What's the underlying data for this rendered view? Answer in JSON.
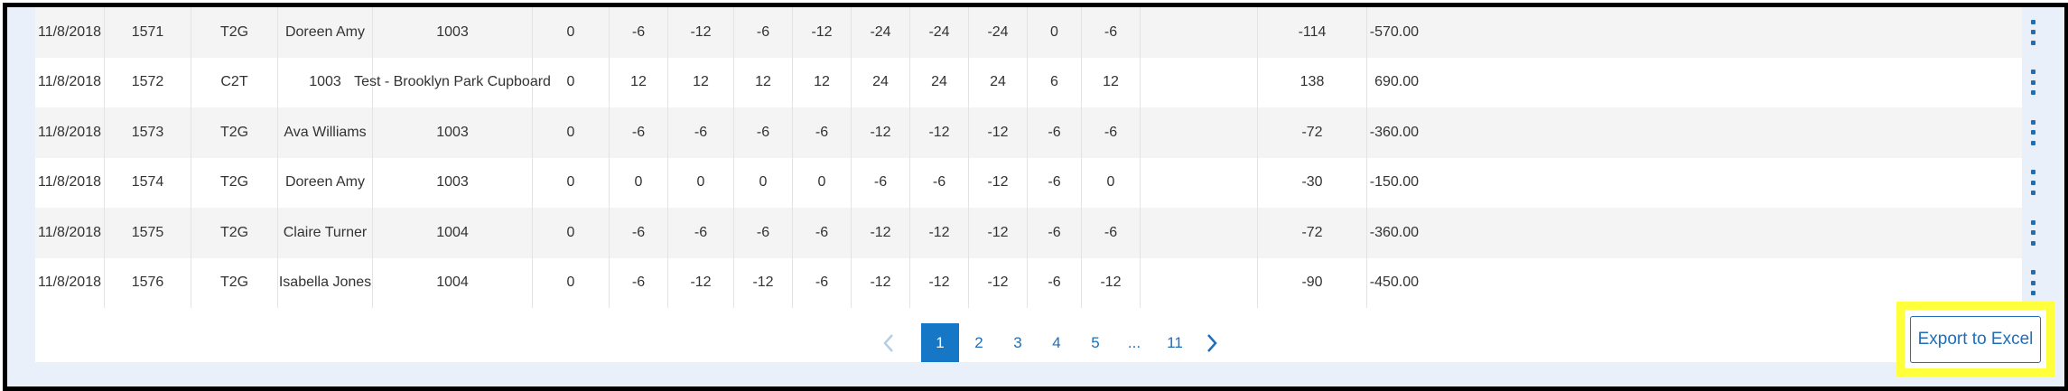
{
  "rows": [
    [
      "11/8/2018",
      "1571",
      "T2G",
      "Doreen Amy",
      "1003",
      "0",
      "-6",
      "-12",
      "-6",
      "-12",
      "-24",
      "-24",
      "-24",
      "0",
      "-6",
      "",
      "-114",
      "-570.00"
    ],
    [
      "11/8/2018",
      "1572",
      "C2T",
      "1003",
      "Test - Brooklyn Park Cupboard",
      "0",
      "12",
      "12",
      "12",
      "12",
      "24",
      "24",
      "24",
      "6",
      "12",
      "",
      "138",
      "690.00"
    ],
    [
      "11/8/2018",
      "1573",
      "T2G",
      "Ava Williams",
      "1003",
      "0",
      "-6",
      "-6",
      "-6",
      "-6",
      "-12",
      "-12",
      "-12",
      "-6",
      "-6",
      "",
      "-72",
      "-360.00"
    ],
    [
      "11/8/2018",
      "1574",
      "T2G",
      "Doreen Amy",
      "1003",
      "0",
      "0",
      "0",
      "0",
      "0",
      "-6",
      "-6",
      "-12",
      "-6",
      "0",
      "",
      "-30",
      "-150.00"
    ],
    [
      "11/8/2018",
      "1575",
      "T2G",
      "Claire Turner",
      "1004",
      "0",
      "-6",
      "-6",
      "-6",
      "-6",
      "-12",
      "-12",
      "-12",
      "-6",
      "-6",
      "",
      "-72",
      "-360.00"
    ],
    [
      "11/8/2018",
      "1576",
      "T2G",
      "Isabella Jones",
      "1004",
      "0",
      "-6",
      "-12",
      "-12",
      "-6",
      "-12",
      "-12",
      "-12",
      "-6",
      "-12",
      "",
      "-90",
      "-450.00"
    ]
  ],
  "pagination": {
    "pages": [
      "1",
      "2",
      "3",
      "4",
      "5",
      "...",
      "11"
    ],
    "current": "1",
    "prev_icon": "chevron-left-icon",
    "next_icon": "chevron-right-icon"
  },
  "actions": {
    "export_label": "Export to Excel",
    "row_menu_icon": "kebab-menu-icon"
  },
  "colors": {
    "accent": "#1f6fb8",
    "active_page": "#1577c6",
    "highlight": "#ffff3b",
    "row_alt": "#f4f4f4",
    "background": "#e9f0fa"
  }
}
